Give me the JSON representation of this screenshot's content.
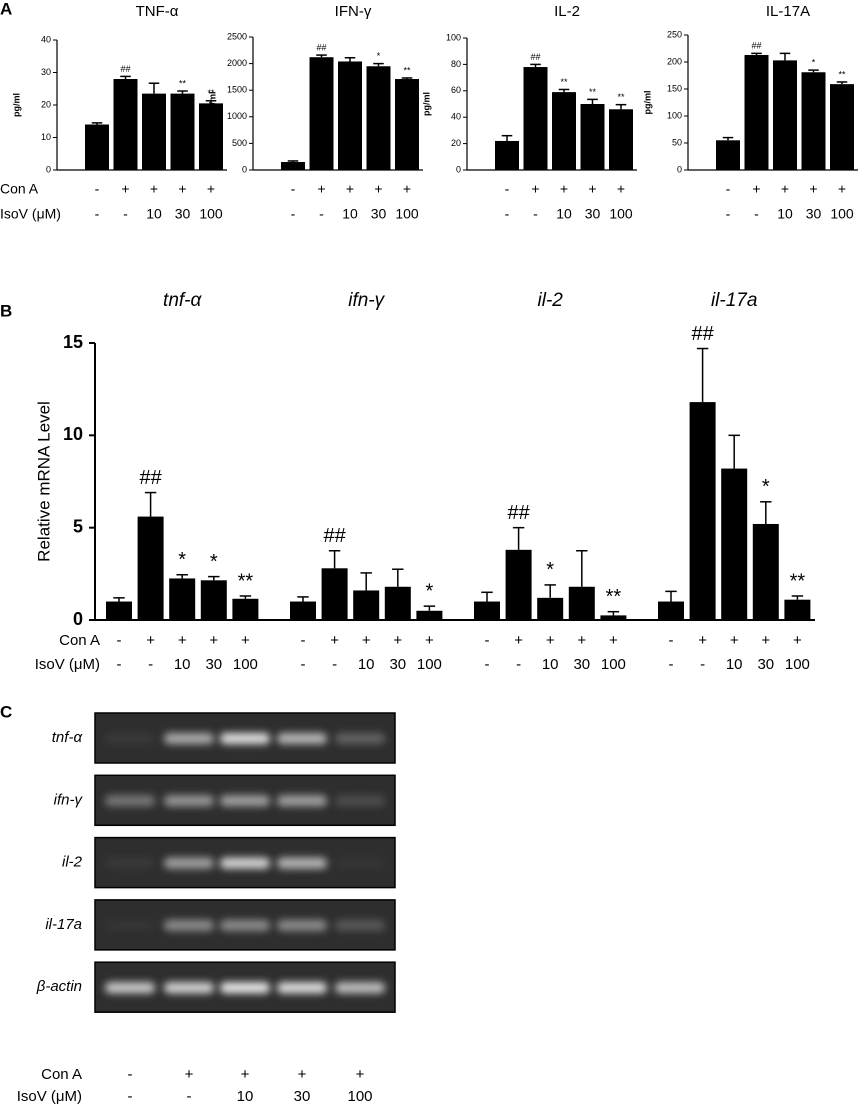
{
  "panel_labels": [
    "A",
    "B",
    "C"
  ],
  "treatments": {
    "names": [
      "Con A",
      "IsoV (μM)"
    ],
    "labels": [
      [
        "-",
        "+",
        "+",
        "+",
        "+"
      ],
      [
        "-",
        "-",
        "10",
        "30",
        "100"
      ]
    ]
  },
  "chart_data": [
    {
      "type": "bar",
      "title": "TNF-α",
      "ylabel": "pg/ml",
      "color": "#000000",
      "ylim": [
        0,
        40
      ],
      "yticks": [
        0,
        10,
        20,
        30,
        40
      ],
      "values": [
        14,
        28,
        23.5,
        23.5,
        20.5
      ],
      "errors": [
        0.5,
        0.8,
        3.2,
        0.8,
        0.8
      ],
      "annotations": [
        null,
        "##",
        null,
        "**",
        "**"
      ]
    },
    {
      "type": "bar",
      "title": "IFN-γ",
      "ylabel": "pg/ml",
      "color": "#000000",
      "ylim": [
        0,
        2500
      ],
      "yticks": [
        0,
        500,
        1000,
        1500,
        2000,
        2500
      ],
      "values": [
        150,
        2120,
        2040,
        1950,
        1710
      ],
      "errors": [
        20,
        40,
        70,
        50,
        20
      ],
      "annotations": [
        null,
        "##",
        null,
        "*",
        "**"
      ]
    },
    {
      "type": "bar",
      "title": "IL-2",
      "ylabel": "pg/ml",
      "color": "#000000",
      "ylim": [
        0,
        100
      ],
      "yticks": [
        0,
        20,
        40,
        60,
        80,
        100
      ],
      "values": [
        22,
        78,
        59,
        50,
        46
      ],
      "errors": [
        4,
        2,
        2,
        3.5,
        3.5
      ],
      "annotations": [
        null,
        "##",
        "**",
        "**",
        "**"
      ]
    },
    {
      "type": "bar",
      "title": "IL-17A",
      "ylabel": "pg/ml",
      "color": "#000000",
      "ylim": [
        0,
        250
      ],
      "yticks": [
        0,
        50,
        100,
        150,
        200,
        250
      ],
      "values": [
        55,
        213,
        203,
        181,
        159
      ],
      "errors": [
        5,
        3,
        13,
        4,
        4
      ],
      "annotations": [
        null,
        "##",
        null,
        "*",
        "**"
      ]
    },
    {
      "type": "grouped_bar",
      "ylabel": "Relative mRNA Level",
      "color": "#000000",
      "ylim": [
        0,
        15
      ],
      "yticks": [
        0,
        5,
        10,
        15
      ],
      "groups": [
        {
          "name": "tnf-α",
          "values": [
            1.0,
            5.6,
            2.25,
            2.15,
            1.15
          ],
          "errors": [
            0.2,
            1.3,
            0.2,
            0.2,
            0.15
          ],
          "annotations": [
            null,
            "##",
            "*",
            "*",
            "**"
          ]
        },
        {
          "name": "ifn-γ",
          "values": [
            1.0,
            2.8,
            1.6,
            1.8,
            0.5
          ],
          "errors": [
            0.25,
            0.95,
            0.95,
            0.95,
            0.25
          ],
          "annotations": [
            null,
            "##",
            null,
            null,
            "*"
          ]
        },
        {
          "name": "il-2",
          "values": [
            1.0,
            3.8,
            1.2,
            1.8,
            0.25
          ],
          "errors": [
            0.5,
            1.2,
            0.7,
            1.95,
            0.2
          ],
          "annotations": [
            null,
            "##",
            "*",
            null,
            "**"
          ]
        },
        {
          "name": "il-17a",
          "values": [
            1.0,
            11.8,
            8.2,
            5.2,
            1.1
          ],
          "errors": [
            0.55,
            2.9,
            1.8,
            1.2,
            0.2
          ],
          "annotations": [
            null,
            "##",
            null,
            "*",
            "**"
          ]
        }
      ]
    }
  ],
  "gel": {
    "rows": [
      "tnf-α",
      "ifn-γ",
      "il-2",
      "il-17a",
      "β-actin"
    ]
  }
}
